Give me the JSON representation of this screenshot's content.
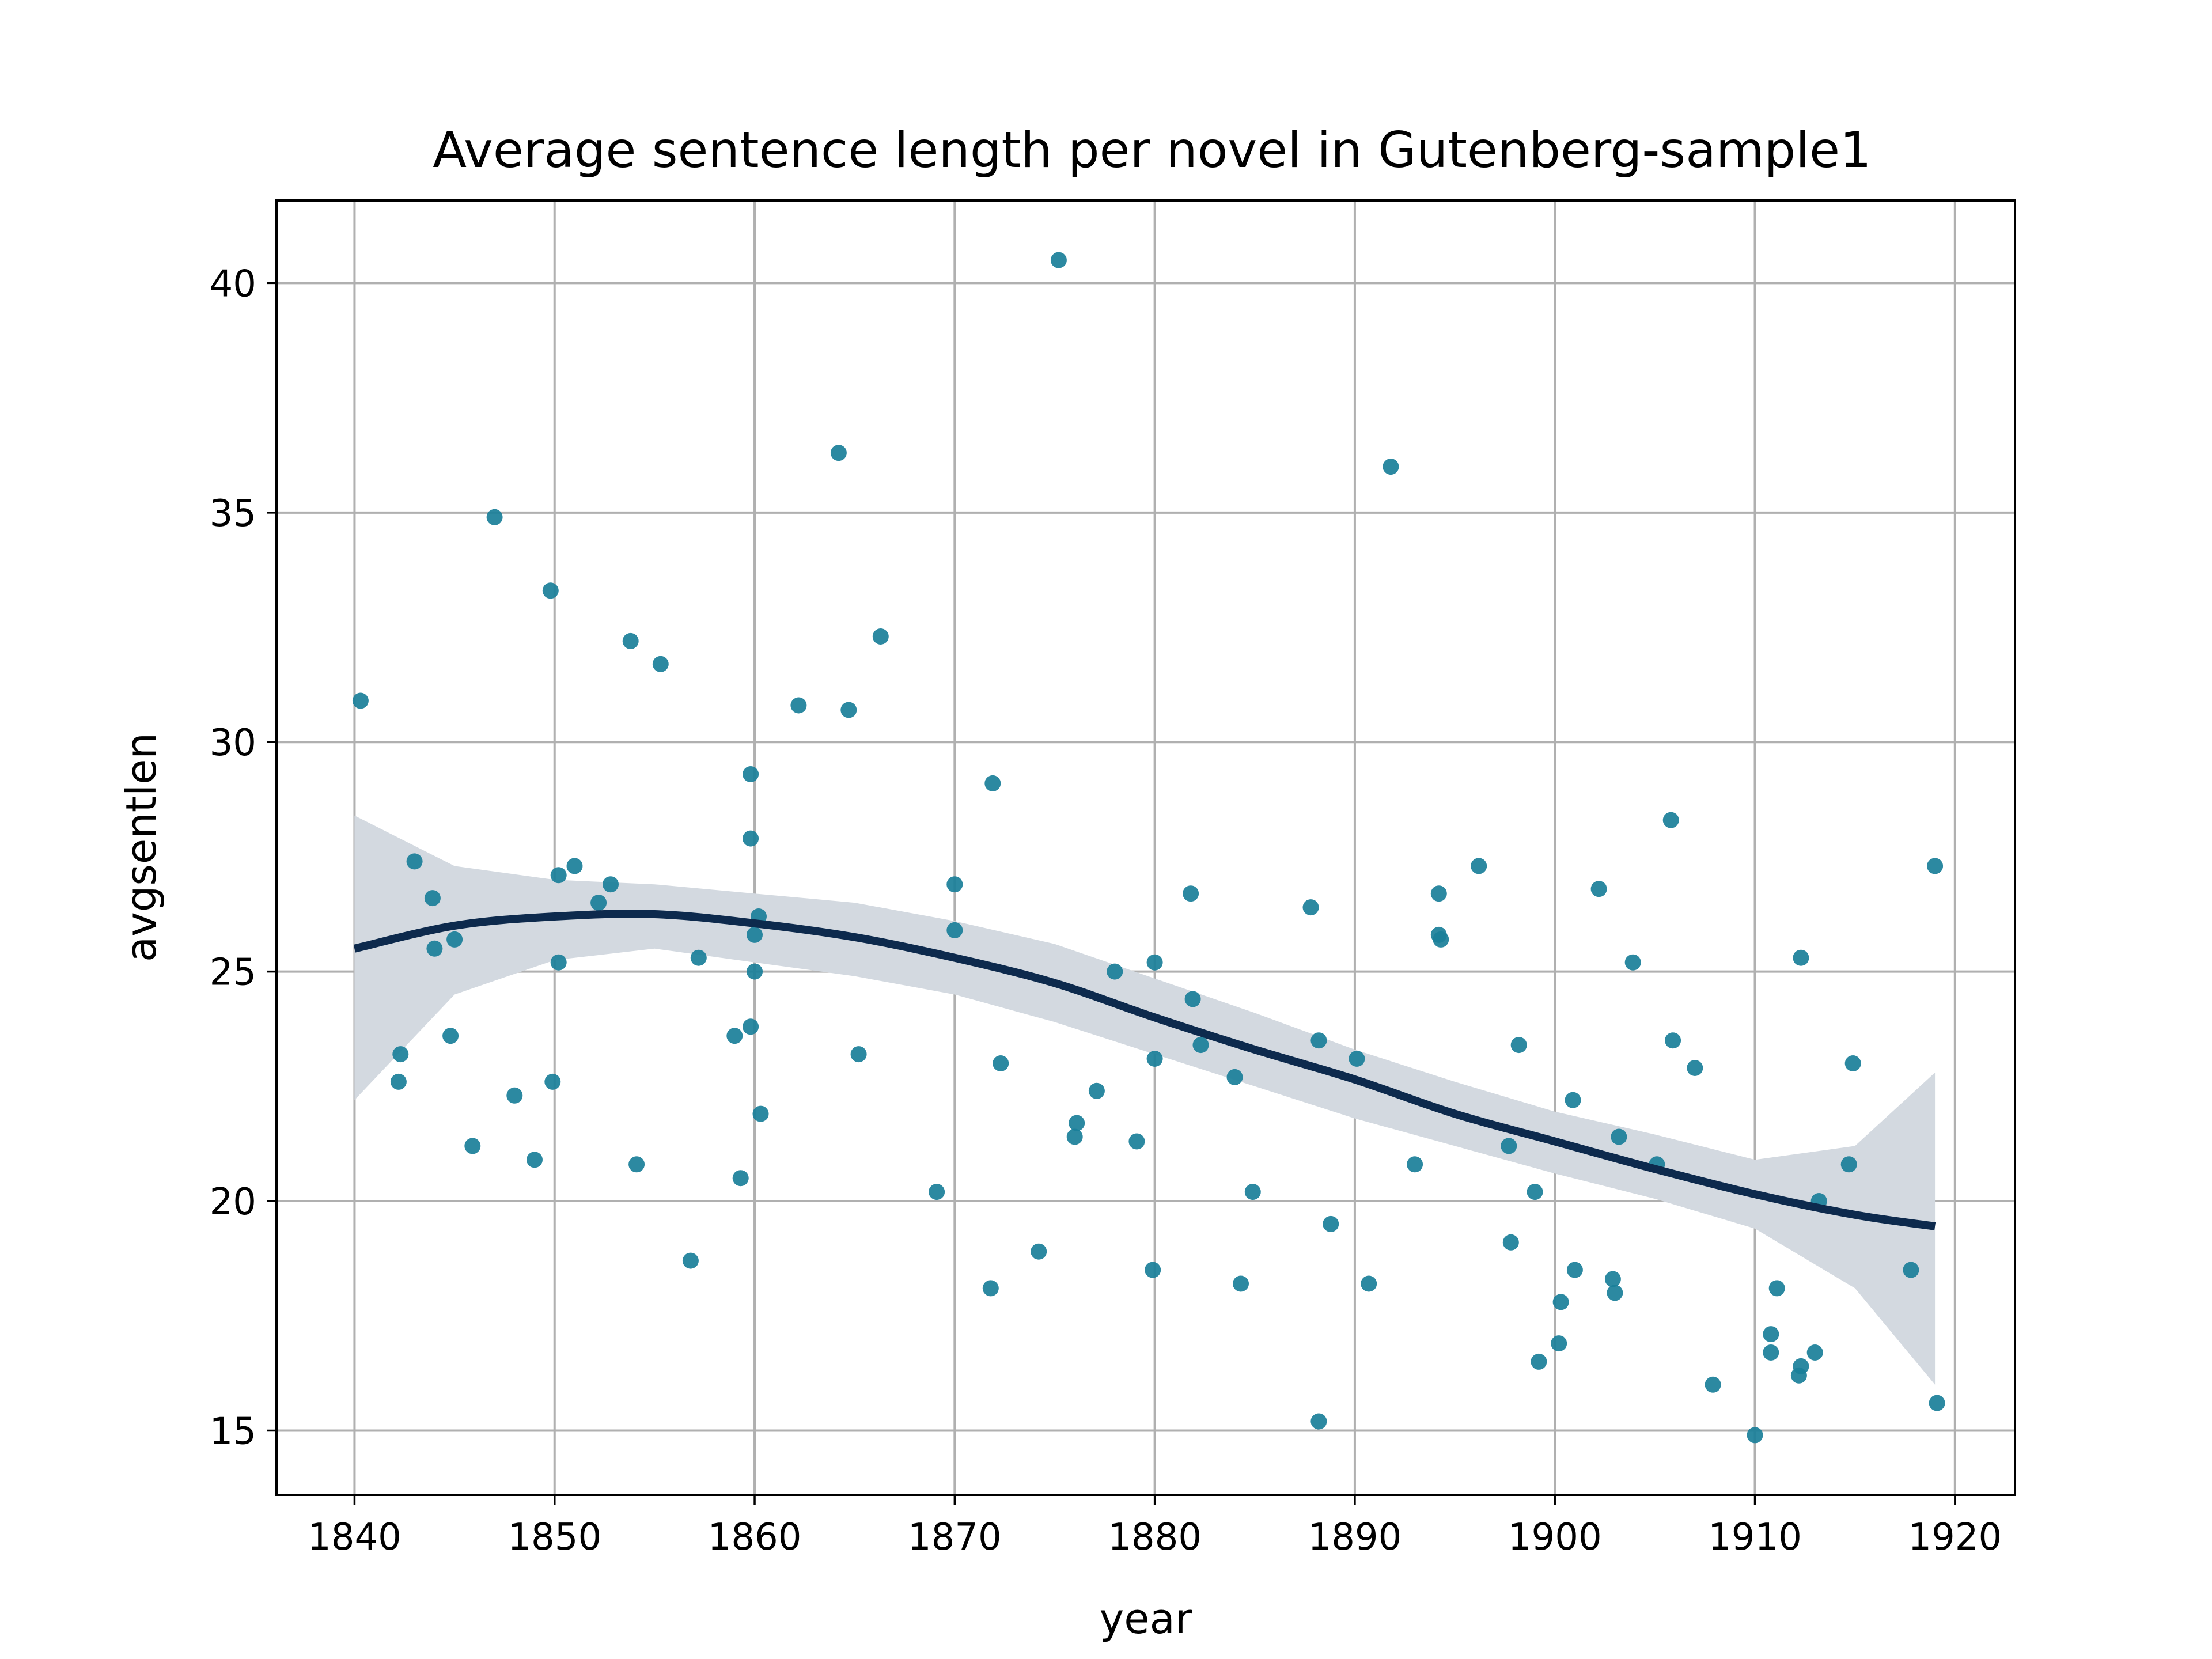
{
  "chart_data": {
    "type": "scatter",
    "title": "Average sentence length per novel in Gutenberg-sample1",
    "xlabel": "year",
    "ylabel": "avgsentlen",
    "xlim": [
      1836.1,
      1923
    ],
    "ylim": [
      13.6,
      41.8
    ],
    "xticks": [
      1840,
      1850,
      1860,
      1870,
      1880,
      1890,
      1900,
      1910,
      1920
    ],
    "yticks": [
      15,
      20,
      25,
      30,
      35,
      40
    ],
    "grid": true,
    "legend": "none",
    "colors": {
      "points": "#1a7f99",
      "fit_line": "#0d2a4d",
      "ci_band": "#d3d9e0"
    },
    "points": [
      [
        1840.3,
        30.9
      ],
      [
        1842.2,
        22.6
      ],
      [
        1842.3,
        23.2
      ],
      [
        1843.0,
        27.4
      ],
      [
        1843.9,
        26.6
      ],
      [
        1844.0,
        25.5
      ],
      [
        1844.8,
        23.6
      ],
      [
        1845.0,
        25.7
      ],
      [
        1845.9,
        21.2
      ],
      [
        1847.0,
        34.9
      ],
      [
        1848.0,
        22.3
      ],
      [
        1849.0,
        20.9
      ],
      [
        1849.8,
        33.3
      ],
      [
        1849.9,
        22.6
      ],
      [
        1850.2,
        27.1
      ],
      [
        1850.2,
        25.2
      ],
      [
        1851.0,
        27.3
      ],
      [
        1852.2,
        26.5
      ],
      [
        1852.8,
        26.9
      ],
      [
        1853.8,
        32.2
      ],
      [
        1854.1,
        20.8
      ],
      [
        1855.3,
        31.7
      ],
      [
        1856.8,
        18.7
      ],
      [
        1857.2,
        25.3
      ],
      [
        1859.0,
        23.6
      ],
      [
        1859.3,
        20.5
      ],
      [
        1859.8,
        23.8
      ],
      [
        1859.8,
        29.3
      ],
      [
        1859.8,
        27.9
      ],
      [
        1860.0,
        25.8
      ],
      [
        1860.0,
        25.0
      ],
      [
        1860.2,
        26.2
      ],
      [
        1860.3,
        21.9
      ],
      [
        1862.2,
        30.8
      ],
      [
        1864.2,
        36.3
      ],
      [
        1864.7,
        30.7
      ],
      [
        1865.2,
        23.2
      ],
      [
        1866.3,
        32.3
      ],
      [
        1869.1,
        20.2
      ],
      [
        1870.0,
        26.9
      ],
      [
        1870.0,
        25.9
      ],
      [
        1871.8,
        18.1
      ],
      [
        1871.9,
        29.1
      ],
      [
        1872.3,
        23.0
      ],
      [
        1874.2,
        18.9
      ],
      [
        1875.2,
        40.5
      ],
      [
        1876.0,
        21.4
      ],
      [
        1876.1,
        21.7
      ],
      [
        1877.1,
        22.4
      ],
      [
        1878.0,
        25.0
      ],
      [
        1879.1,
        21.3
      ],
      [
        1879.9,
        18.5
      ],
      [
        1880.0,
        25.2
      ],
      [
        1880.0,
        23.1
      ],
      [
        1881.8,
        26.7
      ],
      [
        1881.9,
        24.4
      ],
      [
        1882.3,
        23.4
      ],
      [
        1884.0,
        22.7
      ],
      [
        1884.3,
        18.2
      ],
      [
        1884.9,
        20.2
      ],
      [
        1887.8,
        26.4
      ],
      [
        1888.2,
        23.5
      ],
      [
        1888.2,
        15.2
      ],
      [
        1888.8,
        19.5
      ],
      [
        1890.1,
        23.1
      ],
      [
        1890.7,
        18.2
      ],
      [
        1891.8,
        36.0
      ],
      [
        1893.0,
        20.8
      ],
      [
        1894.2,
        26.7
      ],
      [
        1894.2,
        25.8
      ],
      [
        1894.3,
        25.7
      ],
      [
        1896.2,
        27.3
      ],
      [
        1897.7,
        21.2
      ],
      [
        1897.8,
        19.1
      ],
      [
        1898.2,
        23.4
      ],
      [
        1899.0,
        20.2
      ],
      [
        1899.2,
        16.5
      ],
      [
        1900.2,
        16.9
      ],
      [
        1900.3,
        17.8
      ],
      [
        1900.9,
        22.2
      ],
      [
        1901.0,
        18.5
      ],
      [
        1902.2,
        26.8
      ],
      [
        1902.9,
        18.3
      ],
      [
        1903.0,
        18.0
      ],
      [
        1903.2,
        21.4
      ],
      [
        1903.9,
        25.2
      ],
      [
        1905.1,
        20.8
      ],
      [
        1905.8,
        28.3
      ],
      [
        1905.9,
        23.5
      ],
      [
        1907.0,
        22.9
      ],
      [
        1907.9,
        16.0
      ],
      [
        1910.0,
        14.9
      ],
      [
        1910.8,
        17.1
      ],
      [
        1910.8,
        16.7
      ],
      [
        1911.1,
        18.1
      ],
      [
        1912.2,
        16.2
      ],
      [
        1912.3,
        16.4
      ],
      [
        1912.3,
        25.3
      ],
      [
        1913.0,
        16.7
      ],
      [
        1913.2,
        20.0
      ],
      [
        1914.7,
        20.8
      ],
      [
        1914.9,
        23.0
      ],
      [
        1917.8,
        18.5
      ],
      [
        1919.0,
        27.3
      ],
      [
        1919.1,
        15.6
      ]
    ],
    "fit_line": [
      [
        1840,
        25.5
      ],
      [
        1845,
        26.0
      ],
      [
        1850,
        26.2
      ],
      [
        1855,
        26.25
      ],
      [
        1860,
        26.05
      ],
      [
        1865,
        25.75
      ],
      [
        1870,
        25.3
      ],
      [
        1875,
        24.75
      ],
      [
        1880,
        24.0
      ],
      [
        1885,
        23.3
      ],
      [
        1890,
        22.65
      ],
      [
        1895,
        21.9
      ],
      [
        1900,
        21.3
      ],
      [
        1905,
        20.7
      ],
      [
        1910,
        20.15
      ],
      [
        1915,
        19.7
      ],
      [
        1919,
        19.45
      ]
    ],
    "ci_upper": [
      [
        1840,
        28.4
      ],
      [
        1845,
        27.3
      ],
      [
        1850,
        27.0
      ],
      [
        1855,
        26.9
      ],
      [
        1860,
        26.7
      ],
      [
        1865,
        26.5
      ],
      [
        1870,
        26.1
      ],
      [
        1875,
        25.6
      ],
      [
        1880,
        24.85
      ],
      [
        1885,
        24.1
      ],
      [
        1890,
        23.3
      ],
      [
        1895,
        22.6
      ],
      [
        1900,
        21.95
      ],
      [
        1905,
        21.45
      ],
      [
        1910,
        20.9
      ],
      [
        1915,
        21.2
      ],
      [
        1919,
        22.8
      ]
    ],
    "ci_lower": [
      [
        1840,
        22.2
      ],
      [
        1845,
        24.5
      ],
      [
        1850,
        25.25
      ],
      [
        1855,
        25.5
      ],
      [
        1860,
        25.2
      ],
      [
        1865,
        24.9
      ],
      [
        1870,
        24.5
      ],
      [
        1875,
        23.9
      ],
      [
        1880,
        23.2
      ],
      [
        1885,
        22.5
      ],
      [
        1890,
        21.8
      ],
      [
        1895,
        21.2
      ],
      [
        1900,
        20.6
      ],
      [
        1905,
        20.05
      ],
      [
        1910,
        19.4
      ],
      [
        1915,
        18.1
      ],
      [
        1919,
        16.0
      ]
    ]
  }
}
